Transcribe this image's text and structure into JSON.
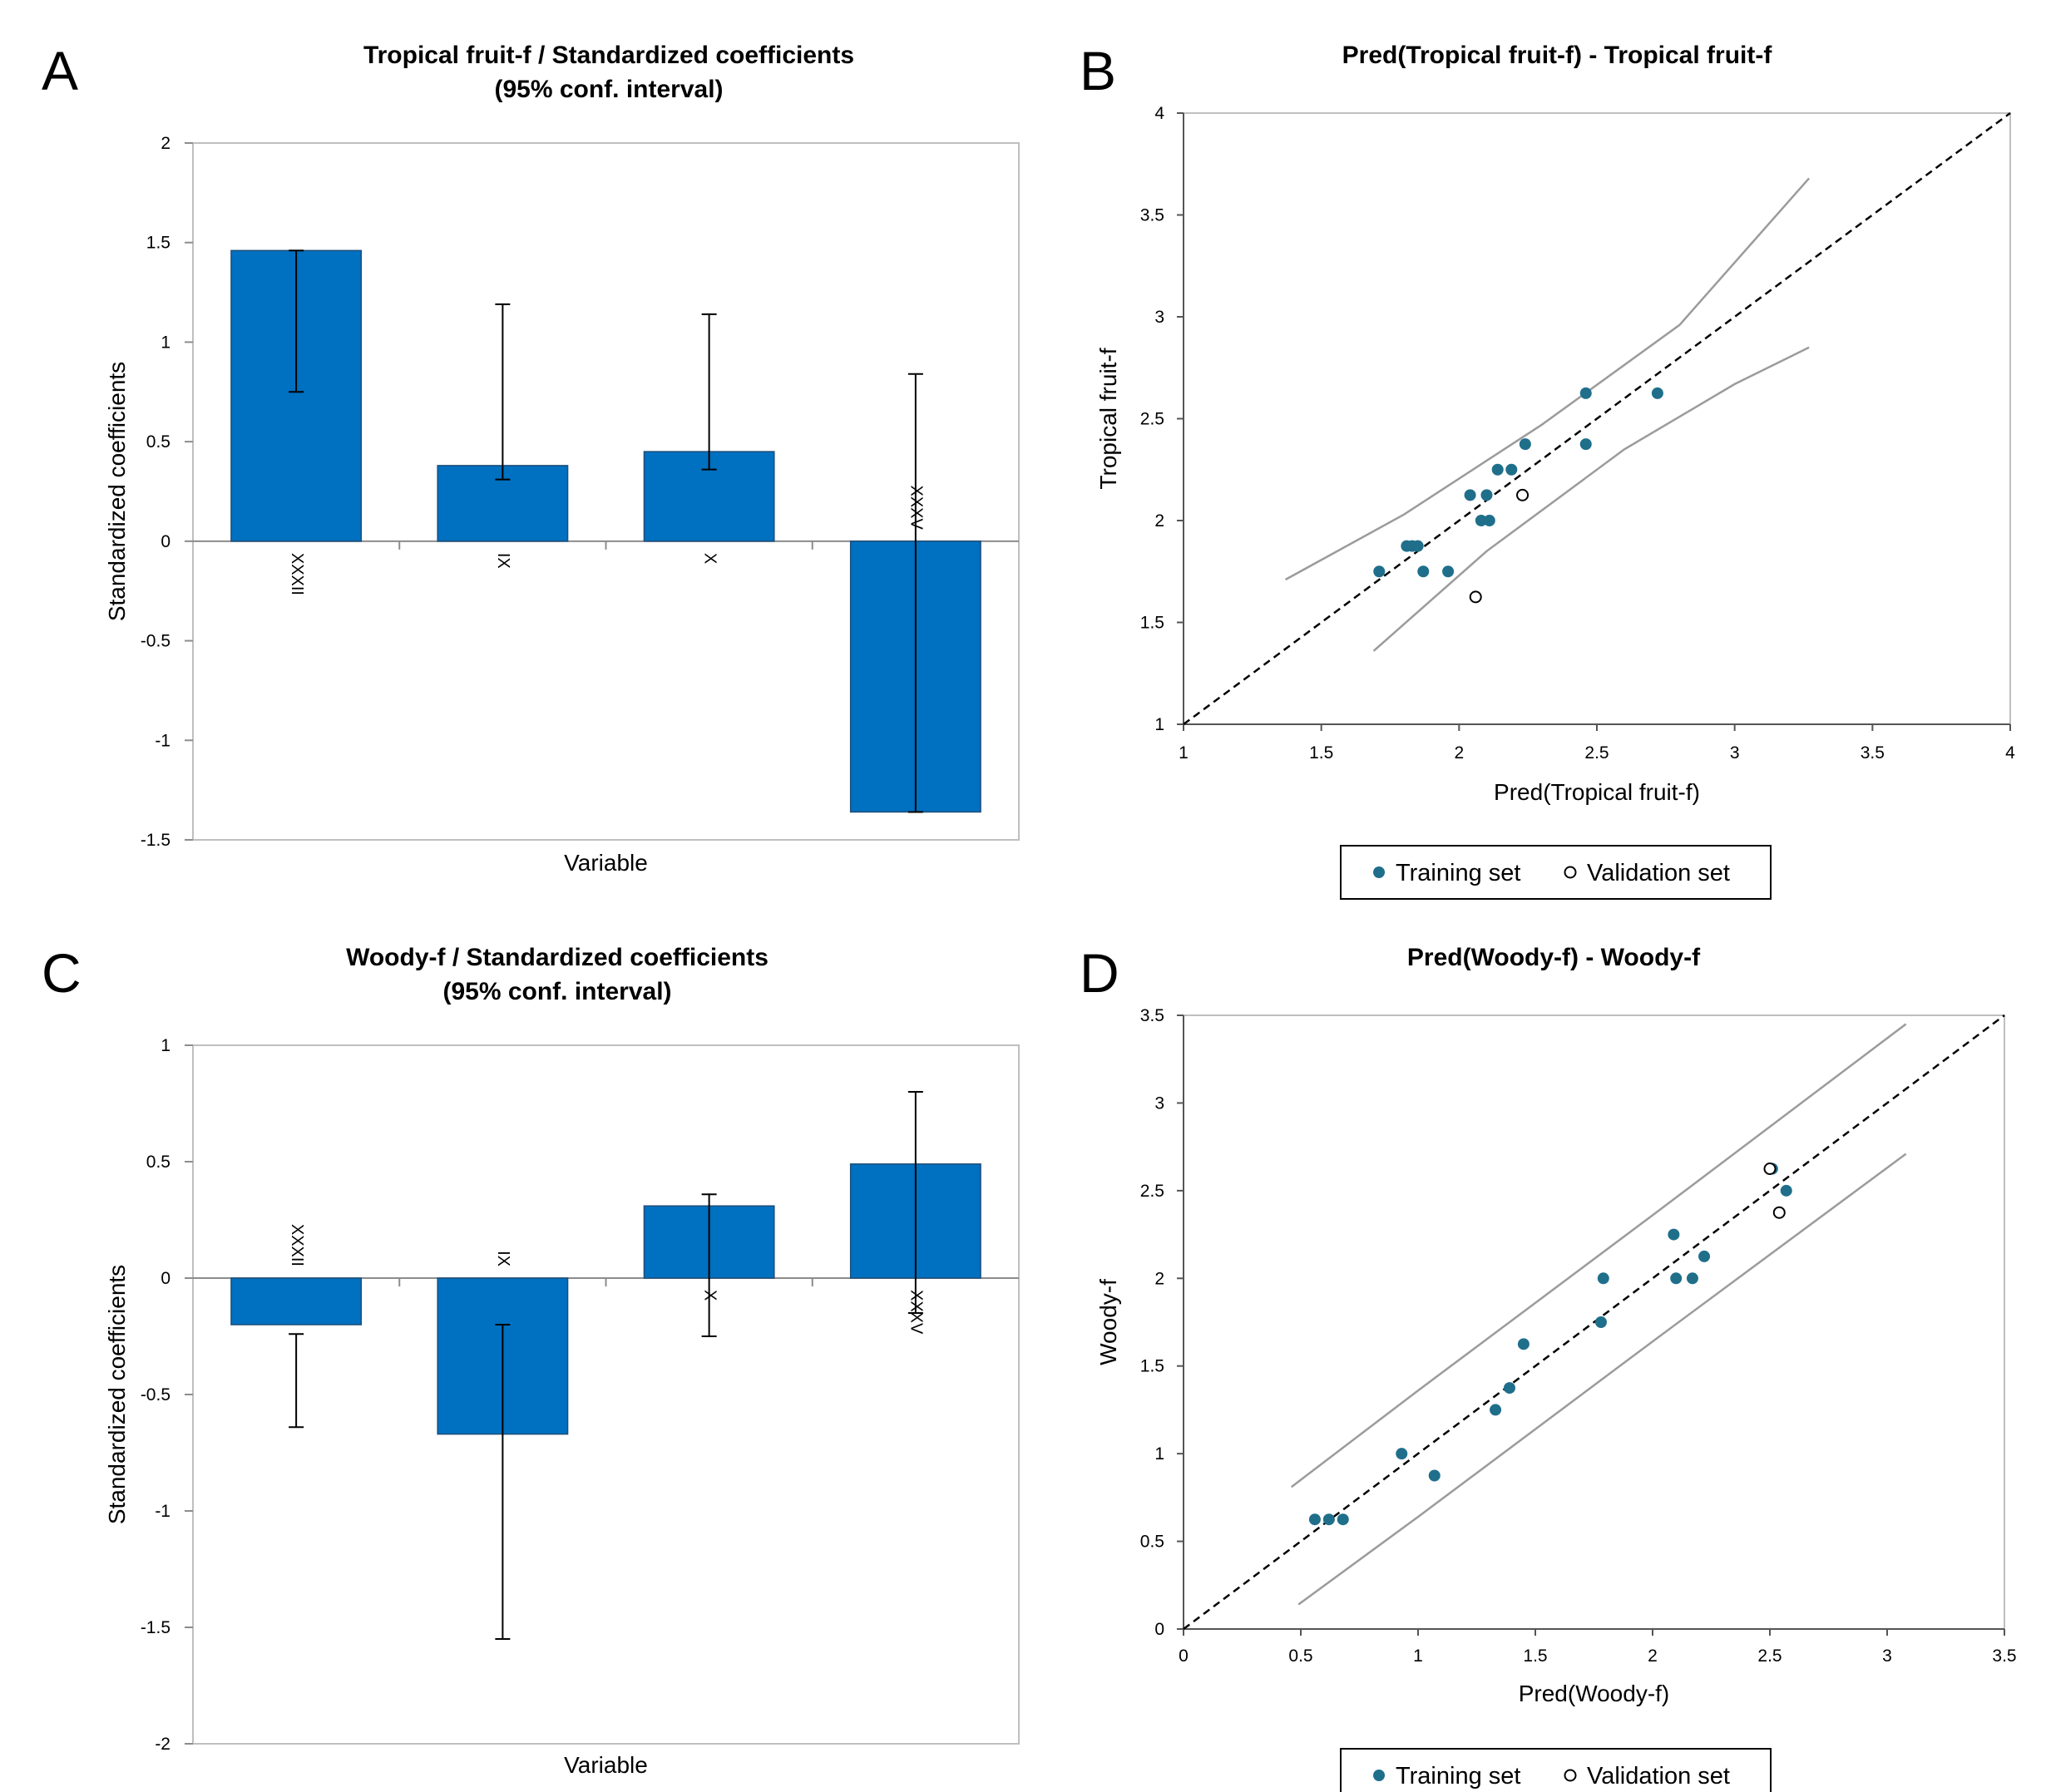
{
  "chart_data": [
    {
      "panel": "A",
      "type": "bar",
      "title": "Tropical fruit-f / Standardized coefficients",
      "subtitle": "(95% conf. interval)",
      "xlabel": "Variable",
      "ylabel": "Standardized coefficients",
      "ylim": [
        -1.5,
        2
      ],
      "yticks": [
        -1.5,
        -1,
        -0.5,
        0,
        0.5,
        1,
        1.5,
        2
      ],
      "ytick_labels": [
        "-1.5",
        "-1",
        "-0.5",
        "0",
        "0.5",
        "1",
        "1.5",
        "2"
      ],
      "categories": [
        "XXXII",
        "IX",
        "X",
        "XXXV"
      ],
      "values": [
        1.46,
        0.38,
        0.45,
        -1.36
      ],
      "err_low": [
        0.75,
        0.31,
        0.36,
        -1.36
      ],
      "err_high": [
        1.46,
        1.19,
        1.14,
        0.84
      ],
      "colors": {
        "bar": "#0070c0",
        "bar_edge": "#1f4e79",
        "frame": "#bfbfbf"
      }
    },
    {
      "panel": "B",
      "type": "scatter",
      "title": "Pred(Tropical fruit-f) - Tropical fruit-f",
      "xlabel": "Pred(Tropical fruit-f)",
      "ylabel": "Tropical fruit-f",
      "xlim": [
        1,
        4
      ],
      "ylim": [
        1,
        4
      ],
      "xticks": [
        1,
        1.5,
        2,
        2.5,
        3,
        3.5,
        4
      ],
      "xtick_labels": [
        "1",
        "1.5",
        "2",
        "2.5",
        "3",
        "3.5",
        "4"
      ],
      "yticks": [
        1,
        1.5,
        2,
        2.5,
        3,
        3.5,
        4
      ],
      "ytick_labels": [
        "1",
        "1.5",
        "2",
        "2.5",
        "3",
        "3.5",
        "4"
      ],
      "training_set": [
        [
          1.71,
          1.75
        ],
        [
          1.81,
          1.875
        ],
        [
          1.83,
          1.875
        ],
        [
          1.85,
          1.875
        ],
        [
          1.87,
          1.75
        ],
        [
          1.96,
          1.75
        ],
        [
          2.04,
          2.125
        ],
        [
          2.08,
          2.0
        ],
        [
          2.1,
          2.125
        ],
        [
          2.11,
          2.0
        ],
        [
          2.14,
          2.25
        ],
        [
          2.19,
          2.25
        ],
        [
          2.24,
          2.375
        ],
        [
          2.46,
          2.375
        ],
        [
          2.46,
          2.625
        ],
        [
          2.72,
          2.625
        ]
      ],
      "validation_set": [
        [
          2.06,
          1.625
        ],
        [
          2.23,
          2.125
        ]
      ],
      "identity_line": [
        [
          1,
          1
        ],
        [
          4,
          4
        ]
      ],
      "upper_band": [
        [
          1.37,
          1.71
        ],
        [
          1.8,
          2.03
        ],
        [
          2.3,
          2.47
        ],
        [
          2.8,
          2.96
        ],
        [
          3.27,
          3.68
        ]
      ],
      "lower_band": [
        [
          1.69,
          1.36
        ],
        [
          2.1,
          1.85
        ],
        [
          2.6,
          2.35
        ],
        [
          3.0,
          2.67
        ],
        [
          3.27,
          2.85
        ]
      ],
      "legend": [
        "Training set",
        "Validation set"
      ],
      "colors": {
        "training": "#1f6f8b",
        "validation_edge": "#000000",
        "band": "#9b9b9b",
        "frame": "#bfbfbf"
      }
    },
    {
      "panel": "C",
      "type": "bar",
      "title": "Woody-f / Standardized coefficients",
      "subtitle": "(95% conf. interval)",
      "xlabel": "Variable",
      "ylabel": "Standardized coefficients",
      "ylim": [
        -2,
        1
      ],
      "yticks": [
        -2,
        -1.5,
        -1,
        -0.5,
        0,
        0.5,
        1
      ],
      "ytick_labels": [
        "-2",
        "-1.5",
        "-1",
        "-0.5",
        "0",
        "0.5",
        "1"
      ],
      "categories": [
        "XXXII",
        "IX",
        "X",
        "XXXV"
      ],
      "values": [
        -0.2,
        -0.67,
        0.31,
        0.49
      ],
      "err_low": [
        -0.64,
        -1.55,
        -0.25,
        -0.15
      ],
      "err_high": [
        -0.24,
        -0.2,
        0.36,
        0.8
      ],
      "colors": {
        "bar": "#0070c0",
        "bar_edge": "#1f4e79",
        "frame": "#bfbfbf"
      }
    },
    {
      "panel": "D",
      "type": "scatter",
      "title": "Pred(Woody-f) - Woody-f",
      "xlabel": "Pred(Woody-f)",
      "ylabel": "Woody-f",
      "xlim": [
        0,
        3.5
      ],
      "ylim": [
        0,
        3.5
      ],
      "xticks": [
        0,
        0.5,
        1,
        1.5,
        2,
        2.5,
        3,
        3.5
      ],
      "xtick_labels": [
        "0",
        "0.5",
        "1",
        "1.5",
        "2",
        "2.5",
        "3",
        "3.5"
      ],
      "yticks": [
        0,
        0.5,
        1,
        1.5,
        2,
        2.5,
        3,
        3.5
      ],
      "ytick_labels": [
        "0",
        "0.5",
        "1",
        "1.5",
        "2",
        "2.5",
        "3",
        "3.5"
      ],
      "training_set": [
        [
          0.56,
          0.625
        ],
        [
          0.62,
          0.625
        ],
        [
          0.68,
          0.625
        ],
        [
          0.93,
          1.0
        ],
        [
          1.07,
          0.875
        ],
        [
          1.33,
          1.25
        ],
        [
          1.39,
          1.375
        ],
        [
          1.45,
          1.625
        ],
        [
          1.78,
          1.75
        ],
        [
          1.79,
          2.0
        ],
        [
          2.09,
          2.25
        ],
        [
          2.1,
          2.0
        ],
        [
          2.17,
          2.0
        ],
        [
          2.22,
          2.125
        ],
        [
          2.51,
          2.625
        ],
        [
          2.57,
          2.5
        ]
      ],
      "validation_set": [
        [
          2.5,
          2.625
        ],
        [
          2.54,
          2.375
        ]
      ],
      "identity_line": [
        [
          0,
          0
        ],
        [
          3.5,
          3.5
        ]
      ],
      "upper_band": [
        [
          0.46,
          0.81
        ],
        [
          1.0,
          1.36
        ],
        [
          2.0,
          2.36
        ],
        [
          3.08,
          3.45
        ]
      ],
      "lower_band": [
        [
          0.49,
          0.14
        ],
        [
          1.0,
          0.64
        ],
        [
          2.0,
          1.64
        ],
        [
          3.08,
          2.71
        ]
      ],
      "legend": [
        "Training set",
        "Validation set"
      ],
      "colors": {
        "training": "#1f6f8b",
        "validation_edge": "#000000",
        "band": "#9b9b9b",
        "frame": "#bfbfbf"
      }
    }
  ]
}
